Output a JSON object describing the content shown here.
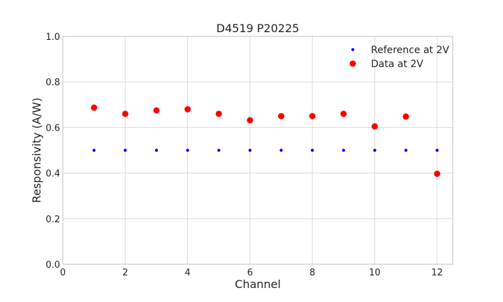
{
  "chart_data": {
    "type": "scatter",
    "title": "D4519 P20225",
    "xlabel": "Channel",
    "ylabel": "Responsivity (A/W)",
    "xlim": [
      0,
      12.5
    ],
    "ylim": [
      0,
      1.0
    ],
    "xticks": [
      0,
      2,
      4,
      6,
      8,
      10,
      12
    ],
    "yticks": [
      0.0,
      0.2,
      0.4,
      0.6,
      0.8,
      1.0
    ],
    "xtick_labels": [
      "0",
      "2",
      "4",
      "6",
      "8",
      "10",
      "12"
    ],
    "ytick_labels": [
      "0.0",
      "0.2",
      "0.4",
      "0.6",
      "0.8",
      "1.0"
    ],
    "grid": true,
    "legend_position": "top-right",
    "series": [
      {
        "name": "Reference at 2V",
        "color": "#0000ff",
        "marker": "small-dot",
        "x": [
          1,
          2,
          3,
          4,
          5,
          6,
          7,
          8,
          9,
          10,
          11,
          12
        ],
        "y": [
          0.5,
          0.5,
          0.5,
          0.5,
          0.5,
          0.5,
          0.5,
          0.5,
          0.5,
          0.5,
          0.5,
          0.5
        ]
      },
      {
        "name": "Data at 2V",
        "color": "#ff0000",
        "marker": "large-dot",
        "x": [
          1,
          2,
          3,
          4,
          5,
          6,
          7,
          8,
          9,
          10,
          11,
          12
        ],
        "y": [
          0.687,
          0.66,
          0.675,
          0.68,
          0.66,
          0.632,
          0.65,
          0.65,
          0.66,
          0.605,
          0.648,
          0.397
        ]
      }
    ]
  }
}
